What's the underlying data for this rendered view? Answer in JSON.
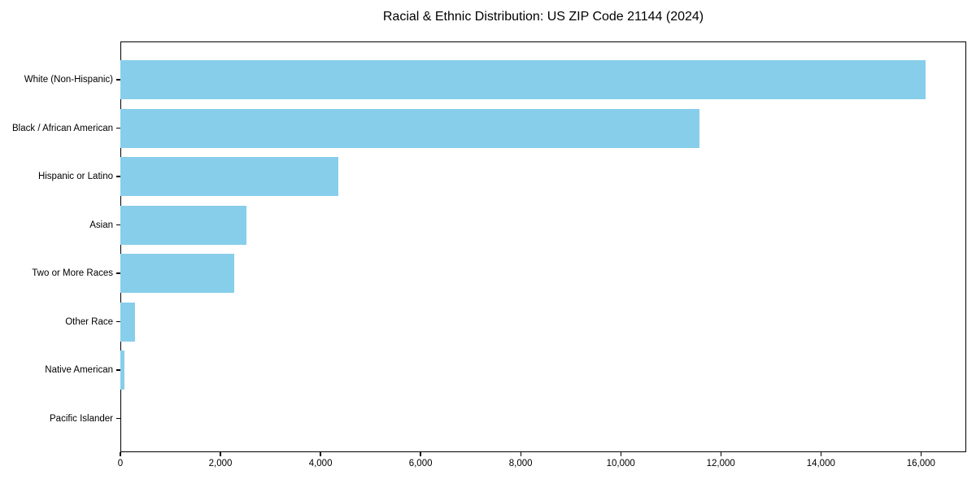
{
  "chart_data": {
    "type": "bar",
    "orientation": "horizontal",
    "title": "Racial & Ethnic Distribution: US ZIP Code 21144 (2024)",
    "categories": [
      "White (Non-Hispanic)",
      "Black / African American",
      "Hispanic or Latino",
      "Asian",
      "Two or More Races",
      "Other Race",
      "Native American",
      "Pacific Islander"
    ],
    "values": [
      16100,
      11570,
      4360,
      2520,
      2270,
      290,
      80,
      0
    ],
    "xlabel": "",
    "ylabel": "",
    "xlim": [
      0,
      16905
    ],
    "x_ticks": [
      0,
      2000,
      4000,
      6000,
      8000,
      10000,
      12000,
      14000,
      16000
    ],
    "x_tick_labels": [
      "0",
      "2,000",
      "4,000",
      "6,000",
      "8,000",
      "10,000",
      "12,000",
      "14,000",
      "16,000"
    ],
    "bar_color": "#87CEEB",
    "axis_color": "#000000",
    "background_color": "#FFFFFF",
    "grid": false,
    "legend": "none"
  }
}
